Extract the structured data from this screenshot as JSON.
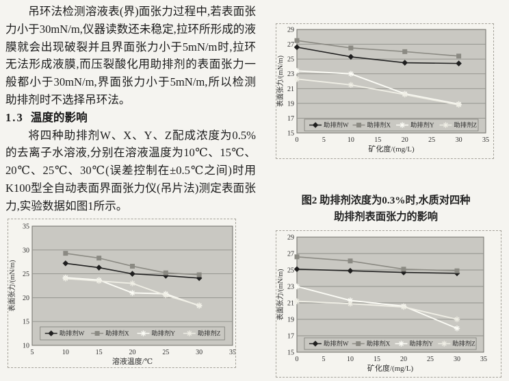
{
  "text": {
    "para1": "吊环法检测溶液表(界)面张力过程中,若表面张力小于30mN/m,仪器读数还未稳定,拉环所形成的液膜就会出现破裂并且界面张力小于5mN/m时,拉环无法形成液膜,而压裂酸化用助排剂的表面张力一般都小于30mN/m,界面张力小于5mN/m,所以检测助排剂时不选择吊环法。",
    "heading_number": "1.3",
    "heading_title": "温度的影响",
    "para2": "将四种助排剂W、X、Y、Z配成浓度为0.5%的去离子水溶液,分别在溶液温度为10℃、15℃、20℃、25℃、30℃(误差控制在±0.5℃之间)时用K100型全自动表面界面张力仪(吊片法)测定表面张力,实验数据如图1所示。"
  },
  "figure2_caption": {
    "line1": "图2  助排剂浓度为0.3%时,水质对四种",
    "line2": "助排剂表面张力的影响"
  },
  "colors": {
    "page_bg": "#f5f4f0",
    "plot_bg": "#c9c8c2",
    "grid": "#8f8f89",
    "plot_border": "#6e6e68",
    "legend_border": "#7c7c76",
    "series_w": "#1f1f1f",
    "series_x": "#8b8a83",
    "series_y": "#fcfcf6",
    "series_z": "#efeee5"
  },
  "chart_data": [
    {
      "id": "figure2-salinity-chart",
      "type": "line",
      "title": "",
      "xlabel": "矿化度/(mg/L)",
      "ylabel": "表面张力/(mN/m)",
      "xlim": [
        0,
        35
      ],
      "ylim": [
        15,
        29
      ],
      "xticks": [
        0,
        5,
        10,
        15,
        20,
        25,
        30,
        35
      ],
      "yticks": [
        15,
        17,
        19,
        21,
        23,
        25,
        27,
        29
      ],
      "grid": "horizontal",
      "legend_position": "inside-bottom-boxed",
      "x": [
        0,
        10,
        20,
        30
      ],
      "series": [
        {
          "name": "助排剂W",
          "marker": "diamond",
          "color": "#1f1f1f",
          "values": [
            26.6,
            25.3,
            24.5,
            24.4
          ]
        },
        {
          "name": "助排剂X",
          "marker": "square",
          "color": "#8b8a83",
          "values": [
            27.5,
            26.5,
            26.0,
            25.4
          ]
        },
        {
          "name": "助排剂Y",
          "marker": "star",
          "color": "#fcfcf6",
          "values": [
            23.4,
            23.0,
            20.3,
            18.9
          ]
        },
        {
          "name": "助排剂Z",
          "marker": "star",
          "color": "#efeee5",
          "values": [
            22.3,
            21.5,
            20.2,
            18.8
          ]
        }
      ]
    },
    {
      "id": "figure1-temperature-chart",
      "type": "line",
      "title": "",
      "xlabel": "溶液温度/℃",
      "ylabel": "表面张力/(mN/m)",
      "xlim": [
        5,
        35
      ],
      "ylim": [
        10,
        35
      ],
      "xticks": [
        5,
        10,
        15,
        20,
        25,
        30,
        35
      ],
      "yticks": [
        10,
        15,
        20,
        25,
        30,
        35
      ],
      "grid": "horizontal",
      "legend_position": "inside-bottom-boxed",
      "x": [
        10,
        15,
        20,
        25,
        30
      ],
      "series": [
        {
          "name": "助排剂W",
          "marker": "diamond",
          "color": "#1f1f1f",
          "values": [
            27.2,
            26.3,
            25.0,
            24.6,
            24.1
          ]
        },
        {
          "name": "助排剂X",
          "marker": "square",
          "color": "#8b8a83",
          "values": [
            29.3,
            28.3,
            26.6,
            25.2,
            24.8
          ]
        },
        {
          "name": "助排剂Y",
          "marker": "star",
          "color": "#fcfcf6",
          "values": [
            24.2,
            23.7,
            21.0,
            20.8,
            18.3
          ]
        },
        {
          "name": "助排剂Z",
          "marker": "star",
          "color": "#efeee5",
          "values": [
            24.0,
            23.5,
            23.0,
            20.5,
            18.4
          ]
        }
      ]
    },
    {
      "id": "figure3-salinity-chart",
      "type": "line",
      "title": "",
      "xlabel": "矿化度/(mg/L)",
      "ylabel": "表面张力/(mN/m)",
      "xlim": [
        0,
        35
      ],
      "ylim": [
        15,
        29
      ],
      "xticks": [
        0,
        5,
        10,
        15,
        20,
        25,
        30,
        35
      ],
      "yticks": [
        15,
        17,
        19,
        21,
        23,
        25,
        27,
        29
      ],
      "grid": "horizontal",
      "legend_position": "inside-bottom-boxed",
      "x": [
        0,
        10,
        20,
        30
      ],
      "series": [
        {
          "name": "助排剂W",
          "marker": "diamond",
          "color": "#1f1f1f",
          "values": [
            25.1,
            24.9,
            24.7,
            24.6
          ]
        },
        {
          "name": "助排剂X",
          "marker": "square",
          "color": "#8b8a83",
          "values": [
            26.6,
            26.1,
            25.1,
            24.9
          ]
        },
        {
          "name": "助排剂Y",
          "marker": "star",
          "color": "#fcfcf6",
          "values": [
            23.0,
            21.3,
            20.6,
            17.9
          ]
        },
        {
          "name": "助排剂Z",
          "marker": "star",
          "color": "#efeee5",
          "values": [
            21.2,
            20.9,
            20.5,
            19.0
          ]
        }
      ]
    }
  ]
}
